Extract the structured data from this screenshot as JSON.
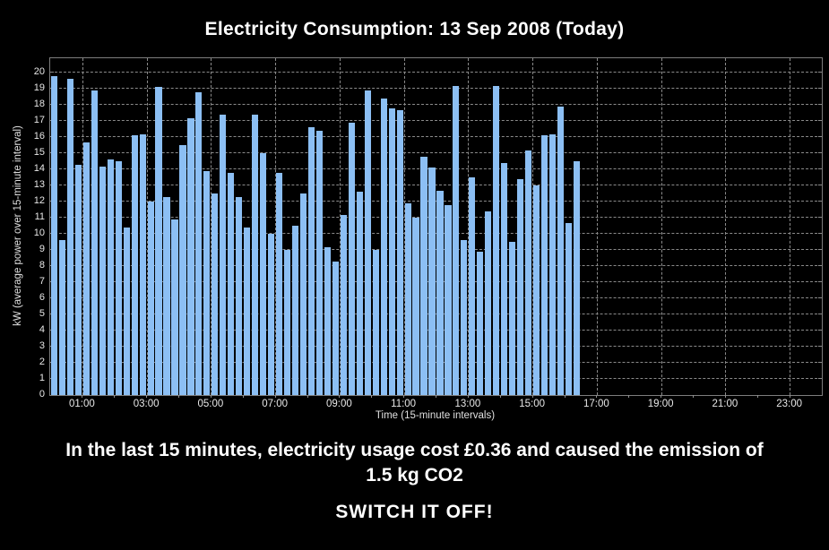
{
  "title": "Electricity Consumption: 13 Sep 2008 (Today)",
  "chart_data": {
    "type": "bar",
    "title": "Electricity Consumption: 13 Sep 2008 (Today)",
    "xlabel": "Time (15-minute intervals)",
    "ylabel": "kW (average power over 15-minute interval)",
    "x_start": "00:00",
    "interval_minutes": 15,
    "x_axis_hours": [
      0,
      24
    ],
    "ylim": [
      0,
      20.9
    ],
    "y_tick_labels": [
      "0",
      "1",
      "2",
      "3",
      "4",
      "5",
      "6",
      "7",
      "8",
      "9",
      "10",
      "11",
      "12",
      "13",
      "14",
      "15",
      "16",
      "17",
      "18",
      "19",
      "20"
    ],
    "x_tick_labels": [
      "01:00",
      "03:00",
      "05:00",
      "07:00",
      "09:00",
      "11:00",
      "13:00",
      "15:00",
      "17:00",
      "19:00",
      "21:00",
      "23:00"
    ],
    "x_tick_hours": [
      1,
      3,
      5,
      7,
      9,
      11,
      13,
      15,
      17,
      19,
      21,
      23
    ],
    "minor_tick_hours_step": 1,
    "grid": true,
    "legend": null,
    "values": [
      19.8,
      9.6,
      19.6,
      14.3,
      15.7,
      18.9,
      14.2,
      14.6,
      14.5,
      10.4,
      16.1,
      16.2,
      12.0,
      19.1,
      12.3,
      10.9,
      15.5,
      17.2,
      18.8,
      13.9,
      12.5,
      17.4,
      13.8,
      12.3,
      10.4,
      17.4,
      15.0,
      10.0,
      13.8,
      9.0,
      10.5,
      12.5,
      16.6,
      16.4,
      9.2,
      8.3,
      11.2,
      16.9,
      12.6,
      18.9,
      9.0,
      18.4,
      17.8,
      17.7,
      11.9,
      11.0,
      14.8,
      14.1,
      12.7,
      11.8,
      19.2,
      9.6,
      13.5,
      8.9,
      11.4,
      19.2,
      14.4,
      9.5,
      13.4,
      15.2,
      13.0,
      16.1,
      16.2,
      17.9,
      10.7,
      14.5
    ],
    "colors": {
      "background": "#000000",
      "bar_fill": "#8CBFF4",
      "grid": "#8a8a8a",
      "frame": "#7d7d7d",
      "text": "#ffffff",
      "tick_text": "#e8e8e8"
    }
  },
  "footer": {
    "message": "In the last 15 minutes, electricity usage cost £0.36 and caused the emission of 1.5 kg CO2",
    "cta": "SWITCH IT OFF!"
  }
}
